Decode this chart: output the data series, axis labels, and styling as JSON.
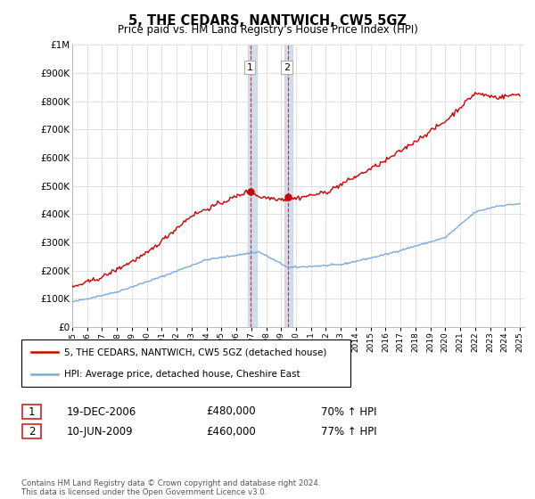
{
  "title": "5, THE CEDARS, NANTWICH, CW5 5GZ",
  "subtitle": "Price paid vs. HM Land Registry's House Price Index (HPI)",
  "sale1_price": 480000,
  "sale1_label": "1",
  "sale1_pct": "70% ↑ HPI",
  "sale1_display": "19-DEC-2006",
  "sale2_price": 460000,
  "sale2_label": "2",
  "sale2_pct": "77% ↑ HPI",
  "sale2_display": "10-JUN-2009",
  "legend_red": "5, THE CEDARS, NANTWICH, CW5 5GZ (detached house)",
  "legend_blue": "HPI: Average price, detached house, Cheshire East",
  "footer": "Contains HM Land Registry data © Crown copyright and database right 2024.\nThis data is licensed under the Open Government Licence v3.0.",
  "red_color": "#cc0000",
  "blue_color": "#7aaadd",
  "shade_color": "#c8d8e8",
  "grid_color": "#cccccc"
}
